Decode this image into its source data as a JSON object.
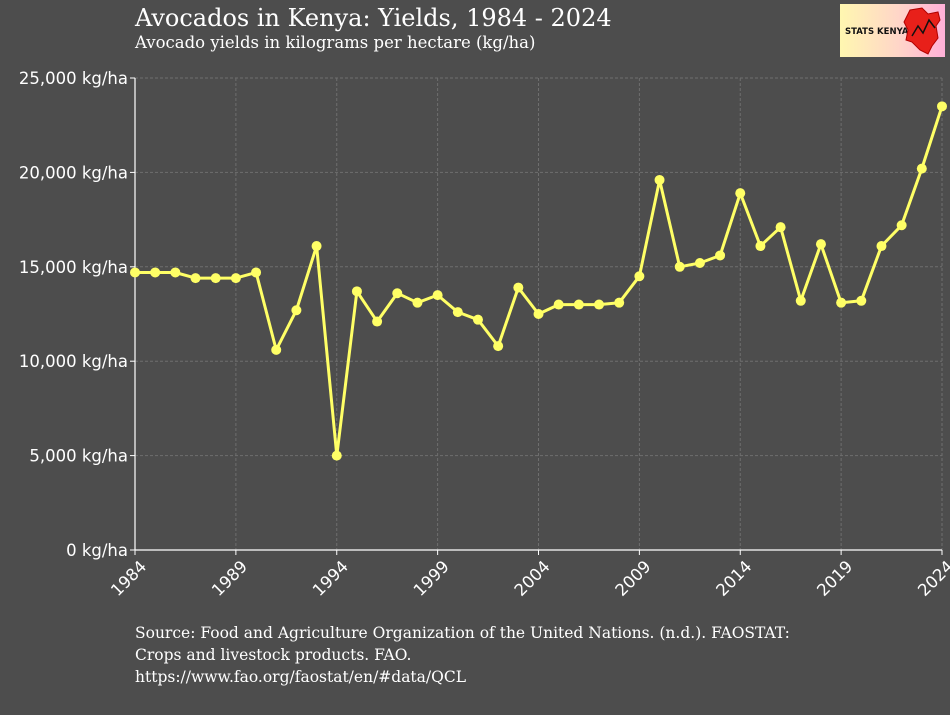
{
  "header": {
    "title": "Avocados in Kenya: Yields, 1984 - 2024",
    "subtitle": "Avocado yields in kilograms per hectare (kg/ha)"
  },
  "logo": {
    "text": "STATS KENYA",
    "icon": "kenya-map-icon"
  },
  "caption": {
    "lines": [
      "Source: Food and Agriculture Organization of the United Nations. (n.d.). FAOSTAT:",
      "Crops and livestock products. FAO.",
      "https://www.fao.org/faostat/en/#data/QCL"
    ]
  },
  "colors": {
    "background": "#4d4d4d",
    "line": "#ffff66",
    "grid": "#6e6e6e",
    "axis": "#ffffff"
  },
  "chart_data": {
    "type": "line",
    "title": "Avocados in Kenya: Yields, 1984 - 2024",
    "subtitle": "Avocado yields in kilograms per hectare (kg/ha)",
    "xlabel": "",
    "ylabel": "",
    "xlim": [
      1984,
      2024
    ],
    "ylim": [
      0,
      25000
    ],
    "x_ticks": [
      1984,
      1989,
      1994,
      1999,
      2004,
      2009,
      2014,
      2019,
      2024
    ],
    "y_ticks": [
      0,
      5000,
      10000,
      15000,
      20000,
      25000
    ],
    "y_tick_labels": [
      "0 kg/ha",
      "5,000 kg/ha",
      "10,000 kg/ha",
      "15,000 kg/ha",
      "20,000 kg/ha",
      "25,000 kg/ha"
    ],
    "grid": true,
    "legend": "none",
    "x": [
      1984,
      1985,
      1986,
      1987,
      1988,
      1989,
      1990,
      1991,
      1992,
      1993,
      1994,
      1995,
      1996,
      1997,
      1998,
      1999,
      2000,
      2001,
      2002,
      2003,
      2004,
      2005,
      2006,
      2007,
      2008,
      2009,
      2010,
      2011,
      2012,
      2013,
      2014,
      2015,
      2016,
      2017,
      2018,
      2019,
      2020,
      2021,
      2022,
      2023,
      2024
    ],
    "values": [
      14700,
      14700,
      14700,
      14400,
      14400,
      14400,
      14700,
      10600,
      12700,
      16100,
      5000,
      13700,
      12100,
      13600,
      13100,
      13500,
      12600,
      12200,
      10800,
      13900,
      12500,
      13000,
      13000,
      13000,
      13100,
      14500,
      19600,
      15000,
      15200,
      15600,
      18900,
      16100,
      17100,
      13200,
      16200,
      13100,
      13200,
      16100,
      17200,
      20200,
      23500
    ]
  }
}
